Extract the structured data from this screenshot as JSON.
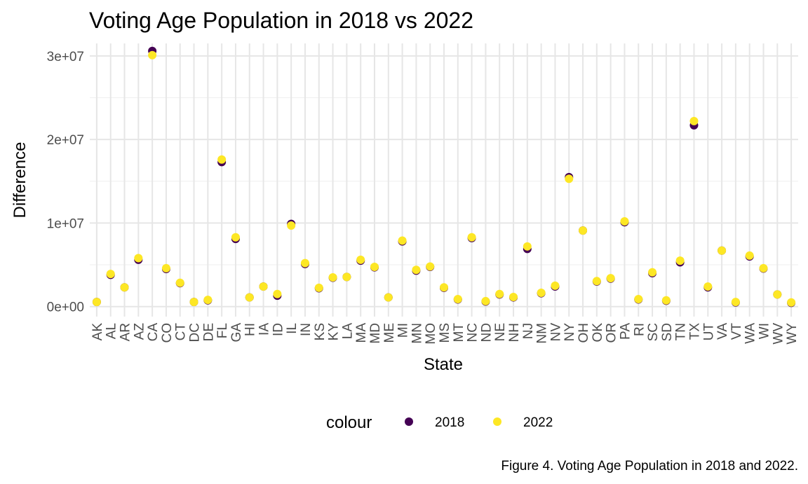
{
  "chart_data": {
    "type": "scatter",
    "title": "Voting Age Population in 2018 vs 2022",
    "xlabel": "State",
    "ylabel": "Difference",
    "categories": [
      "AK",
      "AL",
      "AR",
      "AZ",
      "CA",
      "CO",
      "CT",
      "DC",
      "DE",
      "FL",
      "GA",
      "HI",
      "IA",
      "ID",
      "IL",
      "IN",
      "KS",
      "KY",
      "LA",
      "MA",
      "MD",
      "ME",
      "MI",
      "MN",
      "MO",
      "MS",
      "MT",
      "NC",
      "ND",
      "NE",
      "NH",
      "NJ",
      "NM",
      "NV",
      "NY",
      "OH",
      "OK",
      "OR",
      "PA",
      "RI",
      "SC",
      "SD",
      "TN",
      "TX",
      "UT",
      "VA",
      "VT",
      "WA",
      "WI",
      "WV",
      "WY"
    ],
    "ylim": [
      -1200000,
      31500000
    ],
    "yticks": [
      0,
      10000000,
      20000000,
      30000000
    ],
    "ytick_labels": [
      "0e+00",
      "1e+07",
      "2e+07",
      "3e+07"
    ],
    "grid": true,
    "legend": {
      "title": "colour",
      "position": "bottom"
    },
    "series": [
      {
        "name": "2018",
        "color": "#440154",
        "values": [
          550000,
          3800000,
          2300000,
          5600000,
          30600000,
          4500000,
          2800000,
          550000,
          750000,
          17300000,
          8100000,
          1100000,
          2400000,
          1300000,
          9900000,
          5100000,
          2200000,
          3450000,
          3550000,
          5500000,
          4700000,
          1100000,
          7800000,
          4300000,
          4750000,
          2250000,
          850000,
          8200000,
          600000,
          1450000,
          1100000,
          6900000,
          1600000,
          2400000,
          15500000,
          9100000,
          3000000,
          3350000,
          10100000,
          850000,
          4000000,
          700000,
          5300000,
          21700000,
          2300000,
          6700000,
          500000,
          6000000,
          4550000,
          1450000,
          450000
        ]
      },
      {
        "name": "2022",
        "color": "#fde725",
        "values": [
          550000,
          3900000,
          2300000,
          5800000,
          30100000,
          4600000,
          2850000,
          550000,
          800000,
          17600000,
          8300000,
          1100000,
          2400000,
          1500000,
          9700000,
          5200000,
          2250000,
          3500000,
          3550000,
          5600000,
          4750000,
          1100000,
          7900000,
          4400000,
          4800000,
          2300000,
          900000,
          8300000,
          650000,
          1500000,
          1150000,
          7200000,
          1650000,
          2500000,
          15300000,
          9100000,
          3050000,
          3400000,
          10200000,
          900000,
          4100000,
          750000,
          5500000,
          22200000,
          2400000,
          6700000,
          550000,
          6100000,
          4600000,
          1450000,
          500000
        ]
      }
    ]
  },
  "caption": "Figure 4. Voting Age Population in 2018 and 2022."
}
